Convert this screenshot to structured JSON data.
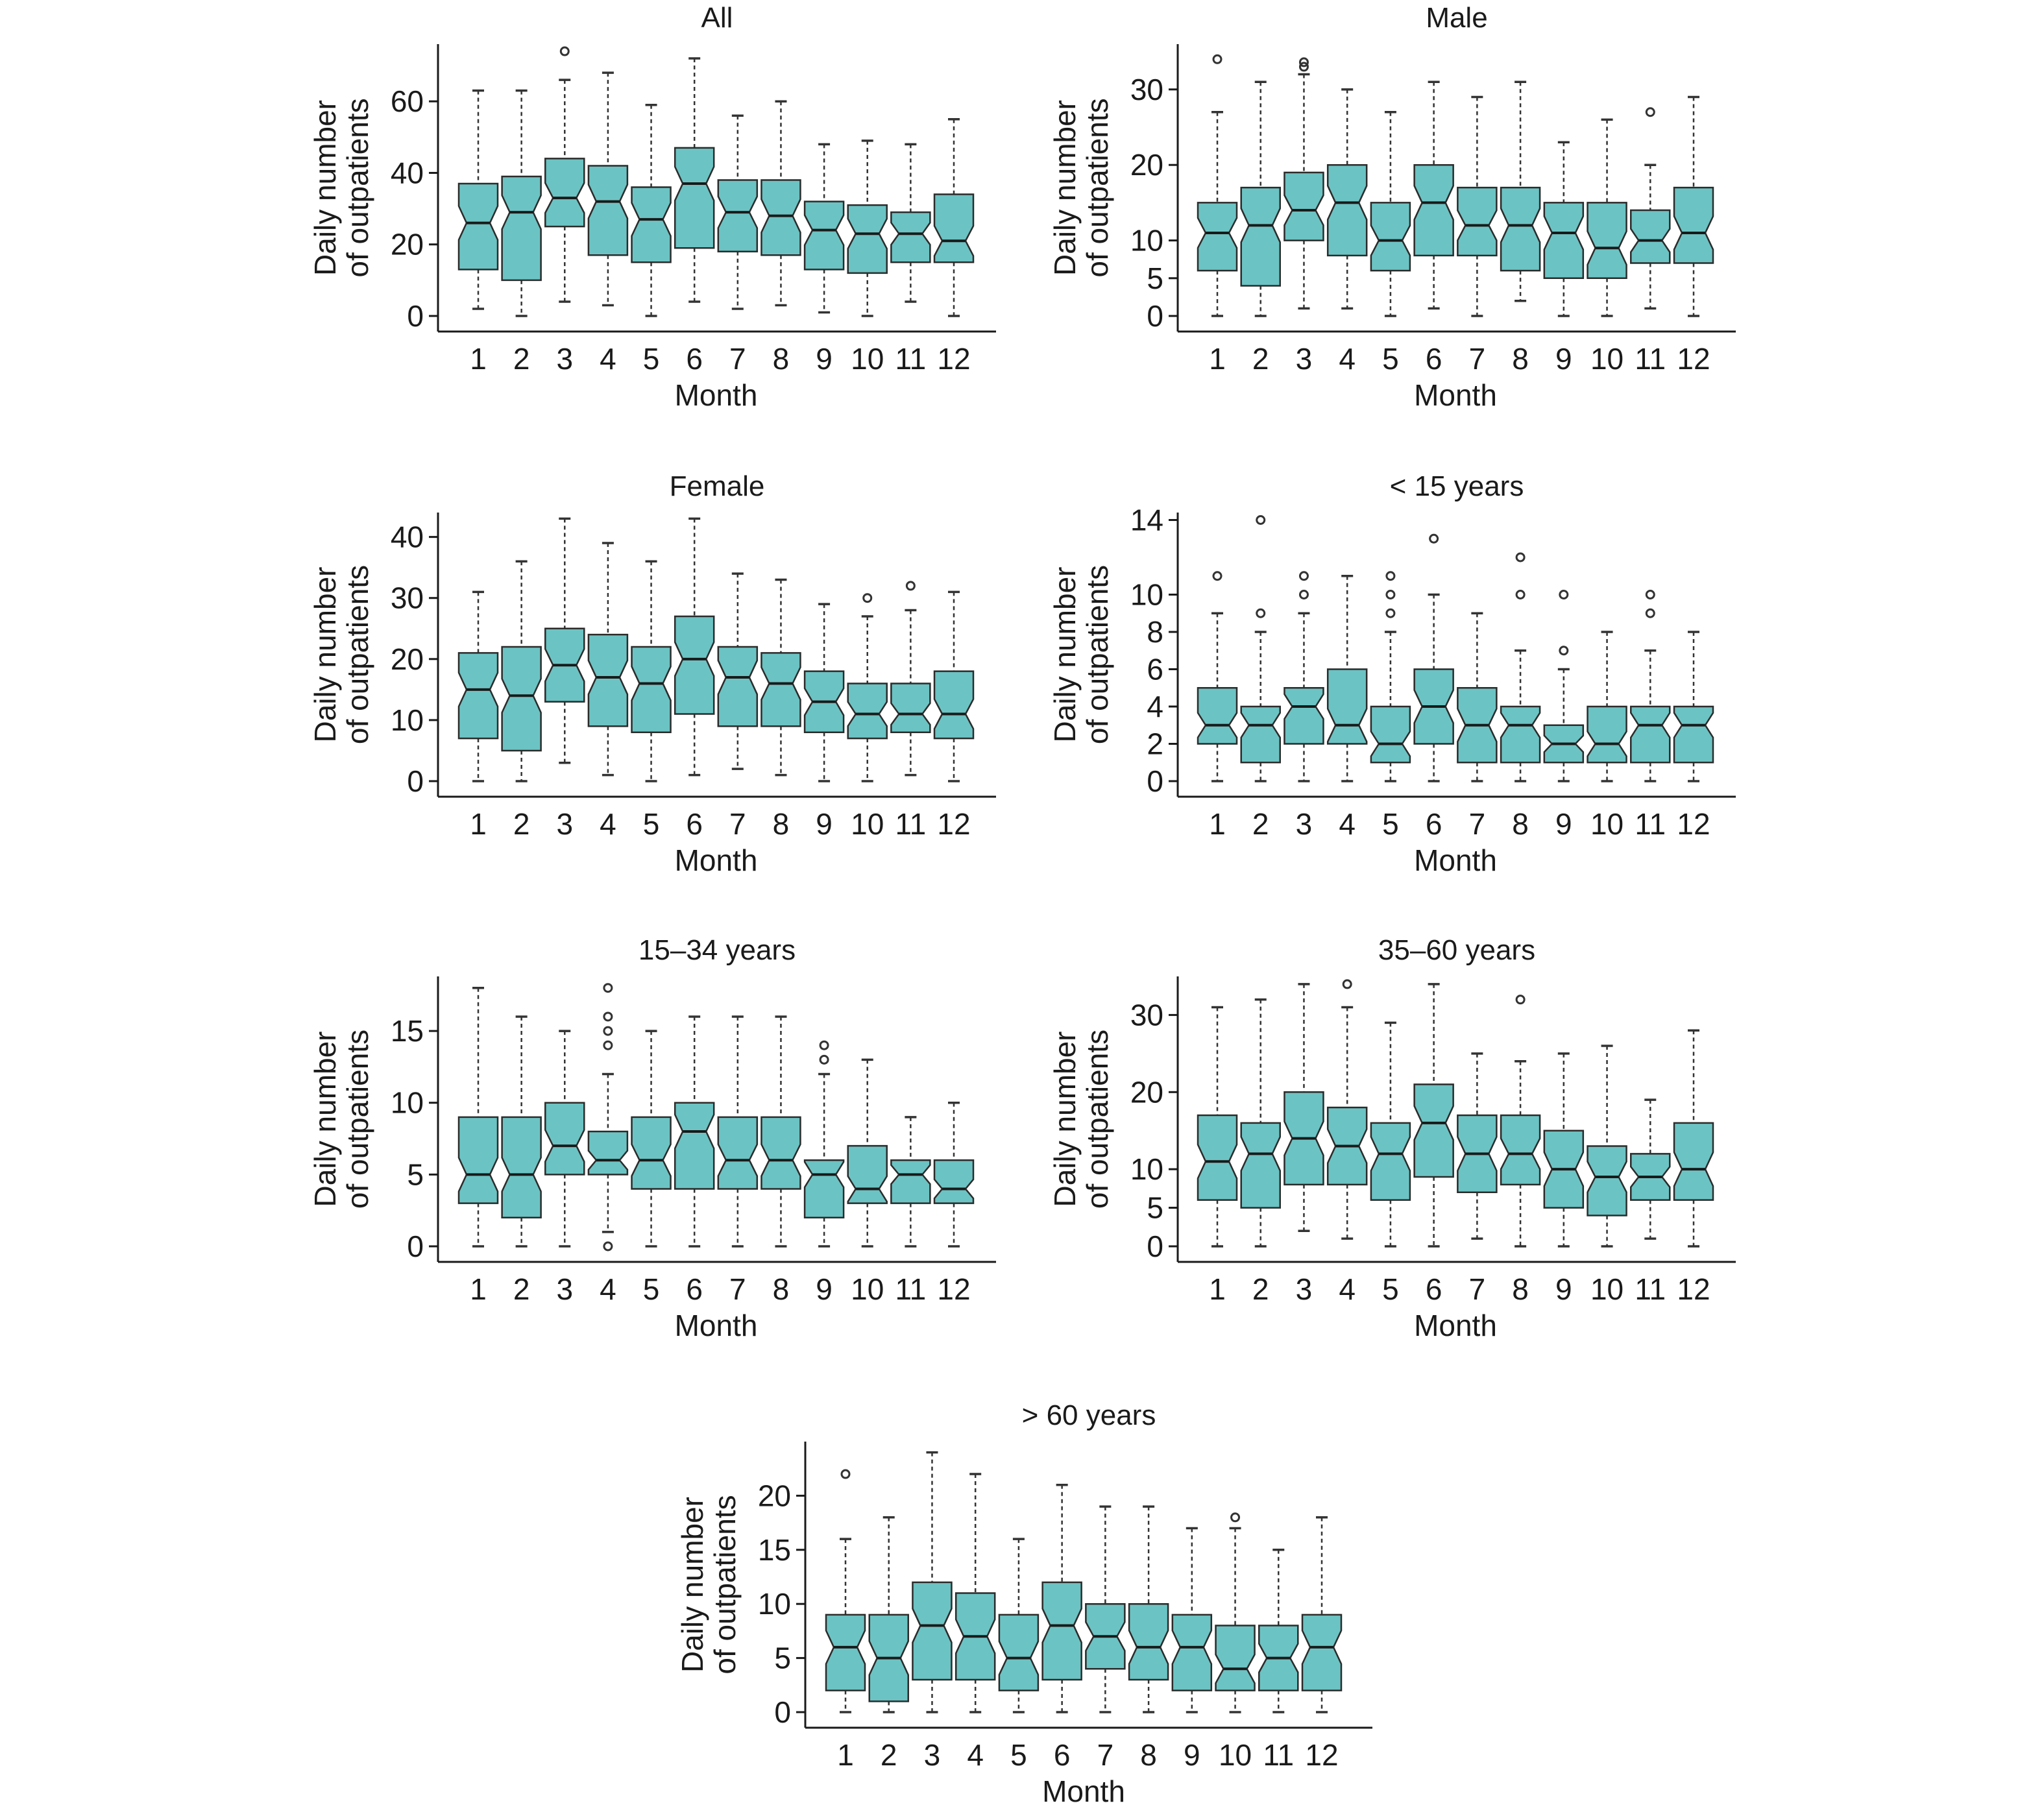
{
  "accent_color": "#6cc3c3",
  "chart_data": [
    {
      "type": "box",
      "title": "All",
      "xlabel": "Month",
      "ylabel": [
        "Daily number",
        "of outpatients"
      ],
      "categories": [
        "1",
        "2",
        "3",
        "4",
        "5",
        "6",
        "7",
        "8",
        "9",
        "10",
        "11",
        "12"
      ],
      "ylim": [
        0,
        76
      ],
      "yticks": [
        0,
        20,
        40,
        60
      ],
      "boxes": [
        {
          "whislo": 2,
          "q1": 13,
          "med": 26,
          "q3": 37,
          "whishi": 63,
          "fliers": []
        },
        {
          "whislo": 0,
          "q1": 10,
          "med": 29,
          "q3": 39,
          "whishi": 63,
          "fliers": []
        },
        {
          "whislo": 4,
          "q1": 25,
          "med": 33,
          "q3": 44,
          "whishi": 66,
          "fliers": [
            74
          ]
        },
        {
          "whislo": 3,
          "q1": 17,
          "med": 32,
          "q3": 42,
          "whishi": 68,
          "fliers": []
        },
        {
          "whislo": 0,
          "q1": 15,
          "med": 27,
          "q3": 36,
          "whishi": 59,
          "fliers": []
        },
        {
          "whislo": 4,
          "q1": 19,
          "med": 37,
          "q3": 47,
          "whishi": 72,
          "fliers": []
        },
        {
          "whislo": 2,
          "q1": 18,
          "med": 29,
          "q3": 38,
          "whishi": 56,
          "fliers": []
        },
        {
          "whislo": 3,
          "q1": 17,
          "med": 28,
          "q3": 38,
          "whishi": 60,
          "fliers": []
        },
        {
          "whislo": 1,
          "q1": 13,
          "med": 24,
          "q3": 32,
          "whishi": 48,
          "fliers": []
        },
        {
          "whislo": 0,
          "q1": 12,
          "med": 23,
          "q3": 31,
          "whishi": 49,
          "fliers": []
        },
        {
          "whislo": 4,
          "q1": 15,
          "med": 23,
          "q3": 29,
          "whishi": 48,
          "fliers": []
        },
        {
          "whislo": 0,
          "q1": 15,
          "med": 21,
          "q3": 34,
          "whishi": 55,
          "fliers": []
        }
      ]
    },
    {
      "type": "box",
      "title": "Male",
      "xlabel": "Month",
      "ylabel": [
        "Daily number",
        "of outpatients"
      ],
      "categories": [
        "1",
        "2",
        "3",
        "4",
        "5",
        "6",
        "7",
        "8",
        "9",
        "10",
        "11",
        "12"
      ],
      "ylim": [
        0,
        36
      ],
      "yticks": [
        0,
        5,
        10,
        20,
        30
      ],
      "boxes": [
        {
          "whislo": 0,
          "q1": 6,
          "med": 11,
          "q3": 15,
          "whishi": 27,
          "fliers": [
            34
          ]
        },
        {
          "whislo": 0,
          "q1": 4,
          "med": 12,
          "q3": 17,
          "whishi": 31,
          "fliers": []
        },
        {
          "whislo": 1,
          "q1": 10,
          "med": 14,
          "q3": 19,
          "whishi": 32,
          "fliers": [
            33,
            33.6
          ]
        },
        {
          "whislo": 1,
          "q1": 8,
          "med": 15,
          "q3": 20,
          "whishi": 30,
          "fliers": []
        },
        {
          "whislo": 0,
          "q1": 6,
          "med": 10,
          "q3": 15,
          "whishi": 27,
          "fliers": []
        },
        {
          "whislo": 1,
          "q1": 8,
          "med": 15,
          "q3": 20,
          "whishi": 31,
          "fliers": []
        },
        {
          "whislo": 0,
          "q1": 8,
          "med": 12,
          "q3": 17,
          "whishi": 29,
          "fliers": []
        },
        {
          "whislo": 2,
          "q1": 6,
          "med": 12,
          "q3": 17,
          "whishi": 31,
          "fliers": []
        },
        {
          "whislo": 0,
          "q1": 5,
          "med": 11,
          "q3": 15,
          "whishi": 23,
          "fliers": []
        },
        {
          "whislo": 0,
          "q1": 5,
          "med": 9,
          "q3": 15,
          "whishi": 26,
          "fliers": []
        },
        {
          "whislo": 1,
          "q1": 7,
          "med": 10,
          "q3": 14,
          "whishi": 20,
          "fliers": [
            27
          ]
        },
        {
          "whislo": 0,
          "q1": 7,
          "med": 11,
          "q3": 17,
          "whishi": 29,
          "fliers": []
        }
      ]
    },
    {
      "type": "box",
      "title": "Female",
      "xlabel": "Month",
      "ylabel": [
        "Daily number",
        "of outpatients"
      ],
      "categories": [
        "1",
        "2",
        "3",
        "4",
        "5",
        "6",
        "7",
        "8",
        "9",
        "10",
        "11",
        "12"
      ],
      "ylim": [
        0,
        44
      ],
      "yticks": [
        0,
        10,
        20,
        30,
        40
      ],
      "boxes": [
        {
          "whislo": 0,
          "q1": 7,
          "med": 15,
          "q3": 21,
          "whishi": 31,
          "fliers": []
        },
        {
          "whislo": 0,
          "q1": 5,
          "med": 14,
          "q3": 22,
          "whishi": 36,
          "fliers": []
        },
        {
          "whislo": 3,
          "q1": 13,
          "med": 19,
          "q3": 25,
          "whishi": 43,
          "fliers": []
        },
        {
          "whislo": 1,
          "q1": 9,
          "med": 17,
          "q3": 24,
          "whishi": 39,
          "fliers": []
        },
        {
          "whislo": 0,
          "q1": 8,
          "med": 16,
          "q3": 22,
          "whishi": 36,
          "fliers": []
        },
        {
          "whislo": 1,
          "q1": 11,
          "med": 20,
          "q3": 27,
          "whishi": 43,
          "fliers": []
        },
        {
          "whislo": 2,
          "q1": 9,
          "med": 17,
          "q3": 22,
          "whishi": 34,
          "fliers": []
        },
        {
          "whislo": 1,
          "q1": 9,
          "med": 16,
          "q3": 21,
          "whishi": 33,
          "fliers": []
        },
        {
          "whislo": 0,
          "q1": 8,
          "med": 13,
          "q3": 18,
          "whishi": 29,
          "fliers": []
        },
        {
          "whislo": 0,
          "q1": 7,
          "med": 11,
          "q3": 16,
          "whishi": 27,
          "fliers": [
            30
          ]
        },
        {
          "whislo": 1,
          "q1": 8,
          "med": 11,
          "q3": 16,
          "whishi": 28,
          "fliers": [
            32
          ]
        },
        {
          "whislo": 0,
          "q1": 7,
          "med": 11,
          "q3": 18,
          "whishi": 31,
          "fliers": []
        }
      ]
    },
    {
      "type": "box",
      "title": "< 15 years",
      "xlabel": "Month",
      "ylabel": [
        "Daily number",
        "of outpatients"
      ],
      "categories": [
        "1",
        "2",
        "3",
        "4",
        "5",
        "6",
        "7",
        "8",
        "9",
        "10",
        "11",
        "12"
      ],
      "ylim": [
        0,
        14.4
      ],
      "yticks": [
        0,
        2,
        4,
        6,
        8,
        10,
        14
      ],
      "boxes": [
        {
          "whislo": 0,
          "q1": 2,
          "med": 3,
          "q3": 5,
          "whishi": 9,
          "fliers": [
            11
          ]
        },
        {
          "whislo": 0,
          "q1": 1,
          "med": 3,
          "q3": 4,
          "whishi": 8,
          "fliers": [
            9,
            14
          ]
        },
        {
          "whislo": 0,
          "q1": 2,
          "med": 4,
          "q3": 5,
          "whishi": 9,
          "fliers": [
            10,
            11
          ]
        },
        {
          "whislo": 0,
          "q1": 2,
          "med": 3,
          "q3": 6,
          "whishi": 11,
          "fliers": []
        },
        {
          "whislo": 0,
          "q1": 1,
          "med": 2,
          "q3": 4,
          "whishi": 8,
          "fliers": [
            9,
            10,
            11
          ]
        },
        {
          "whislo": 0,
          "q1": 2,
          "med": 4,
          "q3": 6,
          "whishi": 10,
          "fliers": [
            13
          ]
        },
        {
          "whislo": 0,
          "q1": 1,
          "med": 3,
          "q3": 5,
          "whishi": 9,
          "fliers": []
        },
        {
          "whislo": 0,
          "q1": 1,
          "med": 3,
          "q3": 4,
          "whishi": 7,
          "fliers": [
            10,
            12
          ]
        },
        {
          "whislo": 0,
          "q1": 1,
          "med": 2,
          "q3": 3,
          "whishi": 6,
          "fliers": [
            7,
            10
          ]
        },
        {
          "whislo": 0,
          "q1": 1,
          "med": 2,
          "q3": 4,
          "whishi": 8,
          "fliers": []
        },
        {
          "whislo": 0,
          "q1": 1,
          "med": 3,
          "q3": 4,
          "whishi": 7,
          "fliers": [
            9,
            10
          ]
        },
        {
          "whislo": 0,
          "q1": 1,
          "med": 3,
          "q3": 4,
          "whishi": 8,
          "fliers": []
        }
      ]
    },
    {
      "type": "box",
      "title": "15–34 years",
      "xlabel": "Month",
      "ylabel": [
        "Daily number",
        "of outpatients"
      ],
      "categories": [
        "1",
        "2",
        "3",
        "4",
        "5",
        "6",
        "7",
        "8",
        "9",
        "10",
        "11",
        "12"
      ],
      "ylim": [
        0,
        18.8
      ],
      "yticks": [
        0,
        5,
        10,
        15
      ],
      "boxes": [
        {
          "whislo": 0,
          "q1": 3,
          "med": 5,
          "q3": 9,
          "whishi": 18,
          "fliers": []
        },
        {
          "whislo": 0,
          "q1": 2,
          "med": 5,
          "q3": 9,
          "whishi": 16,
          "fliers": []
        },
        {
          "whislo": 0,
          "q1": 5,
          "med": 7,
          "q3": 10,
          "whishi": 15,
          "fliers": []
        },
        {
          "whislo": 1,
          "q1": 5,
          "med": 6,
          "q3": 8,
          "whishi": 12,
          "fliers": [
            0,
            14,
            15,
            16,
            18
          ]
        },
        {
          "whislo": 0,
          "q1": 4,
          "med": 6,
          "q3": 9,
          "whishi": 15,
          "fliers": []
        },
        {
          "whislo": 0,
          "q1": 4,
          "med": 8,
          "q3": 10,
          "whishi": 16,
          "fliers": []
        },
        {
          "whislo": 0,
          "q1": 4,
          "med": 6,
          "q3": 9,
          "whishi": 16,
          "fliers": []
        },
        {
          "whislo": 0,
          "q1": 4,
          "med": 6,
          "q3": 9,
          "whishi": 16,
          "fliers": []
        },
        {
          "whislo": 0,
          "q1": 2,
          "med": 5,
          "q3": 6,
          "whishi": 12,
          "fliers": [
            13,
            14
          ]
        },
        {
          "whislo": 0,
          "q1": 3,
          "med": 4,
          "q3": 7,
          "whishi": 13,
          "fliers": []
        },
        {
          "whislo": 0,
          "q1": 3,
          "med": 5,
          "q3": 6,
          "whishi": 9,
          "fliers": []
        },
        {
          "whislo": 0,
          "q1": 3,
          "med": 4,
          "q3": 6,
          "whishi": 10,
          "fliers": []
        }
      ]
    },
    {
      "type": "box",
      "title": "35–60 years",
      "xlabel": "Month",
      "ylabel": [
        "Daily number",
        "of outpatients"
      ],
      "categories": [
        "1",
        "2",
        "3",
        "4",
        "5",
        "6",
        "7",
        "8",
        "9",
        "10",
        "11",
        "12"
      ],
      "ylim": [
        0,
        35
      ],
      "yticks": [
        0,
        5,
        10,
        20,
        30
      ],
      "boxes": [
        {
          "whislo": 0,
          "q1": 6,
          "med": 11,
          "q3": 17,
          "whishi": 31,
          "fliers": []
        },
        {
          "whislo": 0,
          "q1": 5,
          "med": 12,
          "q3": 16,
          "whishi": 32,
          "fliers": []
        },
        {
          "whislo": 2,
          "q1": 8,
          "med": 14,
          "q3": 20,
          "whishi": 34,
          "fliers": []
        },
        {
          "whislo": 1,
          "q1": 8,
          "med": 13,
          "q3": 18,
          "whishi": 31,
          "fliers": [
            34
          ]
        },
        {
          "whislo": 0,
          "q1": 6,
          "med": 12,
          "q3": 16,
          "whishi": 29,
          "fliers": []
        },
        {
          "whislo": 0,
          "q1": 9,
          "med": 16,
          "q3": 21,
          "whishi": 34,
          "fliers": []
        },
        {
          "whislo": 1,
          "q1": 7,
          "med": 12,
          "q3": 17,
          "whishi": 25,
          "fliers": []
        },
        {
          "whislo": 0,
          "q1": 8,
          "med": 12,
          "q3": 17,
          "whishi": 24,
          "fliers": [
            32
          ]
        },
        {
          "whislo": 0,
          "q1": 5,
          "med": 10,
          "q3": 15,
          "whishi": 25,
          "fliers": []
        },
        {
          "whislo": 0,
          "q1": 4,
          "med": 9,
          "q3": 13,
          "whishi": 26,
          "fliers": []
        },
        {
          "whislo": 1,
          "q1": 6,
          "med": 9,
          "q3": 12,
          "whishi": 19,
          "fliers": []
        },
        {
          "whislo": 0,
          "q1": 6,
          "med": 10,
          "q3": 16,
          "whishi": 28,
          "fliers": []
        }
      ]
    },
    {
      "type": "box",
      "title": "> 60 years",
      "xlabel": "Month",
      "ylabel": [
        "Daily number",
        "of outpatients"
      ],
      "categories": [
        "1",
        "2",
        "3",
        "4",
        "5",
        "6",
        "7",
        "8",
        "9",
        "10",
        "11",
        "12"
      ],
      "ylim": [
        0,
        25
      ],
      "yticks": [
        0,
        5,
        10,
        15,
        20
      ],
      "boxes": [
        {
          "whislo": 0,
          "q1": 2,
          "med": 6,
          "q3": 9,
          "whishi": 16,
          "fliers": [
            22
          ]
        },
        {
          "whislo": 0,
          "q1": 1,
          "med": 5,
          "q3": 9,
          "whishi": 18,
          "fliers": []
        },
        {
          "whislo": 0,
          "q1": 3,
          "med": 8,
          "q3": 12,
          "whishi": 24,
          "fliers": []
        },
        {
          "whislo": 0,
          "q1": 3,
          "med": 7,
          "q3": 11,
          "whishi": 22,
          "fliers": []
        },
        {
          "whislo": 0,
          "q1": 2,
          "med": 5,
          "q3": 9,
          "whishi": 16,
          "fliers": []
        },
        {
          "whislo": 0,
          "q1": 3,
          "med": 8,
          "q3": 12,
          "whishi": 21,
          "fliers": []
        },
        {
          "whislo": 0,
          "q1": 4,
          "med": 7,
          "q3": 10,
          "whishi": 19,
          "fliers": []
        },
        {
          "whislo": 0,
          "q1": 3,
          "med": 6,
          "q3": 10,
          "whishi": 19,
          "fliers": []
        },
        {
          "whislo": 0,
          "q1": 2,
          "med": 6,
          "q3": 9,
          "whishi": 17,
          "fliers": []
        },
        {
          "whislo": 0,
          "q1": 2,
          "med": 4,
          "q3": 8,
          "whishi": 17,
          "fliers": [
            18
          ]
        },
        {
          "whislo": 0,
          "q1": 2,
          "med": 5,
          "q3": 8,
          "whishi": 15,
          "fliers": []
        },
        {
          "whislo": 0,
          "q1": 2,
          "med": 6,
          "q3": 9,
          "whishi": 18,
          "fliers": []
        }
      ]
    }
  ]
}
